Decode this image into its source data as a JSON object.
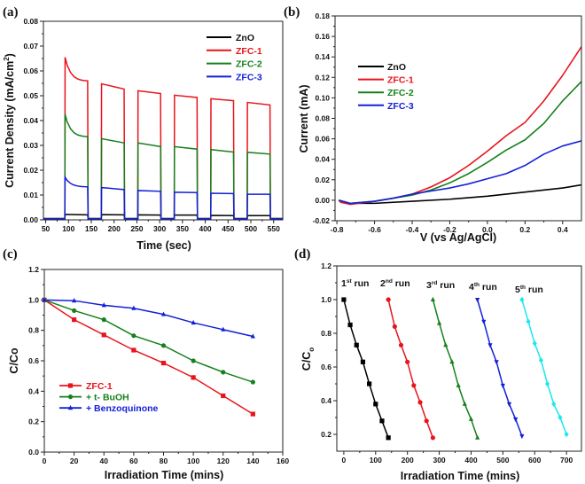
{
  "chart_data": [
    {
      "panel": "(a)",
      "type": "line",
      "title": "",
      "xlabel": "Time (sec)",
      "ylabel": "Current Density (mA/cm",
      "ylabel_sup": "2",
      "ylabel_end": ")",
      "xlim": [
        45,
        570
      ],
      "ylim": [
        0,
        0.08
      ],
      "xticks": [
        50,
        100,
        150,
        200,
        250,
        300,
        350,
        400,
        450,
        500,
        550
      ],
      "yticks": [
        "0.00",
        "0.01",
        "0.02",
        "0.03",
        "0.04",
        "0.05",
        "0.06",
        "0.07",
        "0.08"
      ],
      "legend_position": "top-right",
      "light_on_intervals": [
        [
          92,
          142
        ],
        [
          172,
          222
        ],
        [
          252,
          302
        ],
        [
          332,
          382
        ],
        [
          412,
          462
        ],
        [
          492,
          542
        ]
      ],
      "dark_current": 0.0005,
      "series": [
        {
          "name": "ZnO",
          "color": "#000000",
          "cycles": [
            [
              0.0022,
              0.002
            ],
            [
              0.0021,
              0.002
            ],
            [
              0.002,
              0.0019
            ],
            [
              0.0019,
              0.0019
            ],
            [
              0.0018,
              0.0017
            ],
            [
              0.0017,
              0.0017
            ]
          ]
        },
        {
          "name": "ZFC-1",
          "color": "#e8141c",
          "cycles": [
            [
              0.0655,
              0.056
            ],
            [
              0.0548,
              0.0527
            ],
            [
              0.052,
              0.0509
            ],
            [
              0.0502,
              0.0493
            ],
            [
              0.0488,
              0.048
            ],
            [
              0.0473,
              0.0463
            ]
          ]
        },
        {
          "name": "ZFC-2",
          "color": "#16801c",
          "cycles": [
            [
              0.0425,
              0.0335
            ],
            [
              0.0327,
              0.031
            ],
            [
              0.031,
              0.0295
            ],
            [
              0.0295,
              0.0285
            ],
            [
              0.0283,
              0.0273
            ],
            [
              0.0272,
              0.0265
            ]
          ]
        },
        {
          "name": "ZFC-3",
          "color": "#1420d8",
          "cycles": [
            [
              0.0172,
              0.0133
            ],
            [
              0.013,
              0.0122
            ],
            [
              0.0118,
              0.0115
            ],
            [
              0.0111,
              0.011
            ],
            [
              0.0107,
              0.0106
            ],
            [
              0.0103,
              0.0103
            ]
          ]
        }
      ]
    },
    {
      "panel": "(b)",
      "type": "line",
      "title": "",
      "xlabel": "V (vs Ag/AgCl)",
      "ylabel": "Current (mA)",
      "xlim": [
        -0.81,
        0.5
      ],
      "ylim": [
        -0.02,
        0.18
      ],
      "xticks": [
        "-0.8",
        "-0.6",
        "-0.4",
        "-0.2",
        "0.0",
        "0.2",
        "0.4"
      ],
      "yticks": [
        "-0.02",
        "0.00",
        "0.02",
        "0.04",
        "0.06",
        "0.08",
        "0.10",
        "0.12",
        "0.14",
        "0.16",
        "0.18"
      ],
      "legend_position": "upper-left",
      "series": [
        {
          "name": "ZnO",
          "color": "#000000",
          "x": [
            -0.79,
            -0.73,
            -0.6,
            -0.4,
            -0.2,
            0,
            0.2,
            0.4,
            0.5
          ],
          "y": [
            0,
            -0.003,
            -0.003,
            -0.001,
            0.001,
            0.004,
            0.008,
            0.012,
            0.015
          ]
        },
        {
          "name": "ZFC-1",
          "color": "#e8141c",
          "x": [
            -0.79,
            -0.78,
            -0.73,
            -0.6,
            -0.5,
            -0.4,
            -0.3,
            -0.2,
            -0.1,
            0,
            0.1,
            0.2,
            0.3,
            0.4,
            0.5
          ],
          "y": [
            0,
            -0.002,
            -0.004,
            -0.001,
            0.002,
            0.006,
            0.013,
            0.022,
            0.034,
            0.048,
            0.063,
            0.076,
            0.097,
            0.122,
            0.15
          ]
        },
        {
          "name": "ZFC-2",
          "color": "#16801c",
          "x": [
            -0.79,
            -0.73,
            -0.6,
            -0.5,
            -0.4,
            -0.3,
            -0.2,
            -0.1,
            0,
            0.1,
            0.2,
            0.3,
            0.4,
            0.5
          ],
          "y": [
            0,
            -0.003,
            -0.001,
            0.002,
            0.005,
            0.01,
            0.017,
            0.026,
            0.037,
            0.049,
            0.059,
            0.075,
            0.097,
            0.116
          ]
        },
        {
          "name": "ZFC-3",
          "color": "#1420d8",
          "x": [
            -0.79,
            -0.73,
            -0.6,
            -0.5,
            -0.4,
            -0.3,
            -0.2,
            -0.1,
            0,
            0.1,
            0.2,
            0.3,
            0.4,
            0.5
          ],
          "y": [
            0,
            -0.003,
            -0.001,
            0.002,
            0.006,
            0.009,
            0.012,
            0.016,
            0.021,
            0.026,
            0.034,
            0.045,
            0.053,
            0.058
          ]
        }
      ]
    },
    {
      "panel": "(c)",
      "type": "line",
      "title": "",
      "xlabel": "Irradiation Time (mins)",
      "ylabel": "C/Co",
      "xlim": [
        0,
        160
      ],
      "ylim": [
        0,
        1.2
      ],
      "xticks": [
        "0",
        "20",
        "40",
        "60",
        "80",
        "100",
        "120",
        "140",
        "160"
      ],
      "yticks": [
        "0.0",
        "0.2",
        "0.4",
        "0.6",
        "0.8",
        "1.0",
        "1.2"
      ],
      "legend_position": "lower-left",
      "x": [
        0,
        20,
        40,
        60,
        80,
        100,
        120,
        140
      ],
      "series": [
        {
          "name": "ZFC-1",
          "color": "#e8141c",
          "marker": "square",
          "y": [
            1.0,
            0.87,
            0.77,
            0.67,
            0.585,
            0.49,
            0.37,
            0.25
          ]
        },
        {
          "name": "+ t- BuOH",
          "color": "#16801c",
          "marker": "circle",
          "y": [
            1.0,
            0.93,
            0.87,
            0.765,
            0.7,
            0.6,
            0.525,
            0.46
          ]
        },
        {
          "name": "+ Benzoquinone",
          "color": "#1420d8",
          "marker": "triangle-up",
          "y": [
            1.0,
            0.995,
            0.965,
            0.945,
            0.905,
            0.85,
            0.805,
            0.76
          ]
        }
      ]
    },
    {
      "panel": "(d)",
      "type": "line",
      "title": "",
      "xlabel": "Irradiation Time (mins)",
      "ylabel": "C/C",
      "ylabel_sub": "o",
      "xlim": [
        -22,
        747
      ],
      "ylim": [
        0.1,
        1.2
      ],
      "xticks": [
        "0",
        "100",
        "200",
        "300",
        "400",
        "500",
        "600",
        "700"
      ],
      "yticks": [
        "0.2",
        "0.4",
        "0.6",
        "0.8",
        "1.0",
        "1.2"
      ],
      "series": [
        {
          "name": "1",
          "sup": "st",
          "suffix": " run",
          "color": "#000000",
          "marker": "square",
          "x0": 0,
          "y": [
            1.0,
            0.85,
            0.73,
            0.63,
            0.5,
            0.38,
            0.28,
            0.18
          ]
        },
        {
          "name": "2",
          "sup": "nd",
          "suffix": " run",
          "color": "#e8141c",
          "marker": "circle",
          "x0": 140,
          "y": [
            1.0,
            0.84,
            0.73,
            0.63,
            0.49,
            0.39,
            0.28,
            0.18
          ]
        },
        {
          "name": "3",
          "sup": "rd",
          "suffix": " run",
          "color": "#16801c",
          "marker": "triangle-up",
          "x0": 280,
          "y": [
            1.0,
            0.86,
            0.73,
            0.63,
            0.49,
            0.38,
            0.29,
            0.18
          ]
        },
        {
          "name": "4",
          "sup": "th",
          "suffix": " run",
          "color": "#1420d8",
          "marker": "triangle-down",
          "x0": 420,
          "y": [
            1.0,
            0.87,
            0.73,
            0.63,
            0.49,
            0.38,
            0.29,
            0.19
          ]
        },
        {
          "name": "5",
          "sup": "th",
          "suffix": " run",
          "color": "#18e8f0",
          "marker": "diamond",
          "x0": 560,
          "y": [
            1.0,
            0.87,
            0.74,
            0.64,
            0.5,
            0.38,
            0.3,
            0.2
          ]
        }
      ],
      "x_step": 20
    }
  ]
}
